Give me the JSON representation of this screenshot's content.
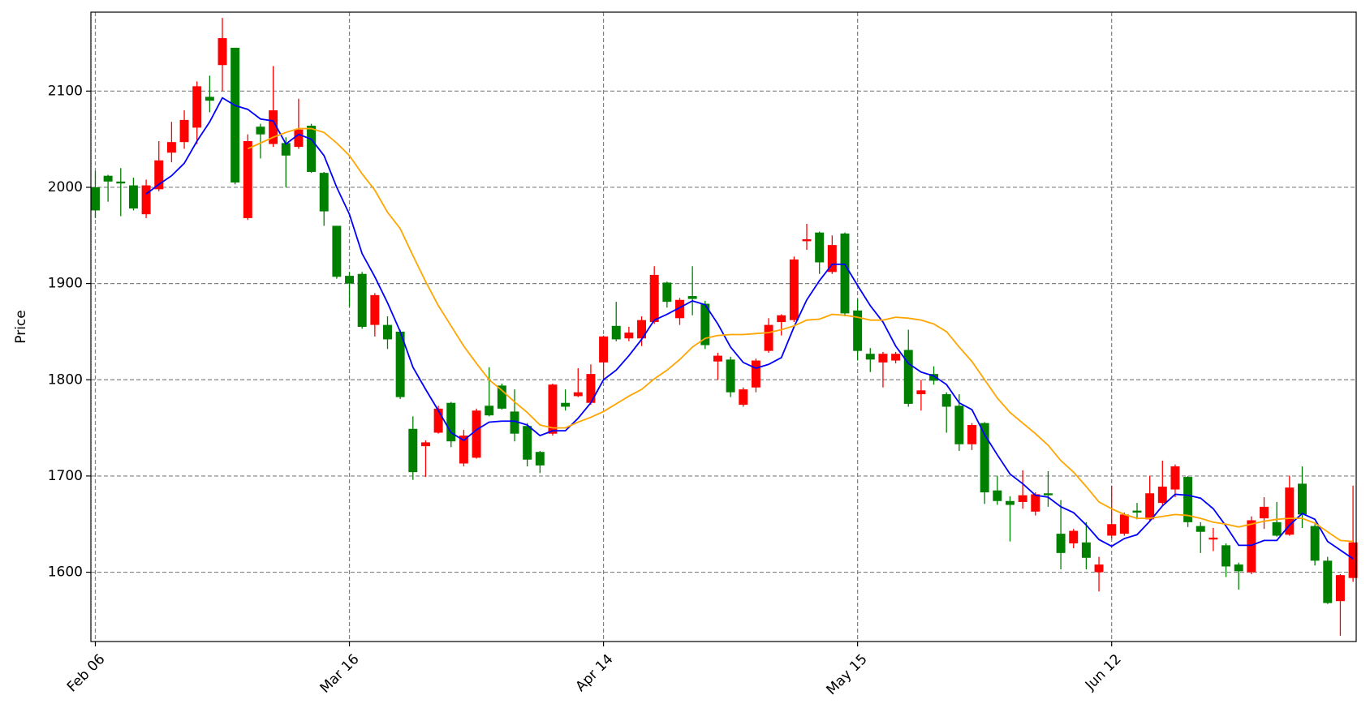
{
  "chart_data": {
    "type": "candlestick",
    "y_label": "Price",
    "ylim": [
      1528,
      2182
    ],
    "yticks": [
      1600,
      1700,
      1800,
      1900,
      2000,
      2100
    ],
    "xlim": [
      -0.35,
      99.25
    ],
    "xticks": [
      {
        "value": 0,
        "label": "Feb 06"
      },
      {
        "value": 20,
        "label": "Mar 16"
      },
      {
        "value": 40,
        "label": "Apr 14"
      },
      {
        "value": 60,
        "label": "May 15"
      },
      {
        "value": 80,
        "label": "Jun 12"
      }
    ],
    "grid": true,
    "up_color": "red",
    "down_color": "green",
    "open": [
      2000,
      2012,
      2006,
      2002,
      1972,
      1998,
      2036,
      2047,
      2062,
      2094,
      2127,
      2145,
      1968,
      2063,
      2045,
      2046,
      2042,
      2064,
      2015,
      1960,
      1908,
      1910,
      1857,
      1857,
      1850,
      1749,
      1731,
      1745,
      1776,
      1713,
      1719,
      1773,
      1794,
      1767,
      1752,
      1725,
      1744,
      1776,
      1783,
      1776,
      1818,
      1856,
      1843,
      1843,
      1860,
      1901,
      1864,
      1887,
      1879,
      1819,
      1821,
      1774,
      1792,
      1830,
      1860,
      1862,
      1944,
      1953,
      1912,
      1952,
      1872,
      1827,
      1818,
      1820,
      1831,
      1785,
      1806,
      1785,
      1773,
      1733,
      1755,
      1685,
      1674,
      1673,
      1663,
      1682,
      1640,
      1630,
      1631,
      1600,
      1638,
      1640,
      1664,
      1655,
      1672,
      1686,
      1699,
      1648,
      1634,
      1628,
      1608,
      1600,
      1656,
      1652,
      1639,
      1692,
      1648,
      1612,
      1570,
      1594
    ],
    "high": [
      2017,
      2013,
      2020,
      2010,
      2008,
      2048,
      2068,
      2080,
      2110,
      2116,
      2176,
      2145,
      2055,
      2066,
      2126,
      2052,
      2092,
      2066,
      2016,
      1960,
      1912,
      1912,
      1890,
      1866,
      1852,
      1762,
      1737,
      1773,
      1777,
      1748,
      1770,
      1813,
      1796,
      1790,
      1755,
      1726,
      1796,
      1790,
      1812,
      1816,
      1846,
      1881,
      1855,
      1866,
      1918,
      1902,
      1885,
      1918,
      1882,
      1828,
      1824,
      1792,
      1822,
      1864,
      1868,
      1928,
      1962,
      1954,
      1950,
      1953,
      1884,
      1833,
      1829,
      1829,
      1852,
      1800,
      1814,
      1787,
      1785,
      1755,
      1756,
      1700,
      1679,
      1706,
      1683,
      1705,
      1675,
      1645,
      1652,
      1616,
      1690,
      1662,
      1672,
      1700,
      1716,
      1712,
      1700,
      1652,
      1646,
      1630,
      1610,
      1658,
      1678,
      1673,
      1700,
      1710,
      1650,
      1616,
      1598,
      1690
    ],
    "low": [
      1968,
      1985,
      1970,
      1976,
      1968,
      1996,
      2026,
      2040,
      2045,
      2078,
      2100,
      2003,
      1966,
      2030,
      2042,
      2000,
      2040,
      2015,
      1960,
      1905,
      1876,
      1853,
      1845,
      1832,
      1780,
      1696,
      1699,
      1744,
      1730,
      1710,
      1718,
      1762,
      1769,
      1736,
      1710,
      1703,
      1742,
      1768,
      1782,
      1774,
      1800,
      1840,
      1840,
      1835,
      1858,
      1875,
      1857,
      1867,
      1832,
      1800,
      1782,
      1772,
      1787,
      1828,
      1846,
      1860,
      1935,
      1910,
      1910,
      1866,
      1820,
      1808,
      1792,
      1817,
      1772,
      1768,
      1795,
      1745,
      1726,
      1727,
      1671,
      1670,
      1632,
      1666,
      1659,
      1668,
      1603,
      1625,
      1603,
      1580,
      1635,
      1638,
      1655,
      1653,
      1670,
      1678,
      1647,
      1620,
      1622,
      1595,
      1582,
      1598,
      1645,
      1637,
      1638,
      1646,
      1607,
      1567,
      1534,
      1590
    ],
    "close": [
      1976,
      2006,
      2004,
      1978,
      2002,
      2028,
      2047,
      2070,
      2105,
      2090,
      2155,
      2005,
      2048,
      2055,
      2080,
      2033,
      2060,
      2016,
      1975,
      1907,
      1900,
      1855,
      1888,
      1842,
      1782,
      1704,
      1735,
      1770,
      1736,
      1742,
      1768,
      1763,
      1770,
      1744,
      1717,
      1711,
      1795,
      1772,
      1787,
      1806,
      1845,
      1842,
      1849,
      1862,
      1909,
      1881,
      1883,
      1884,
      1836,
      1825,
      1787,
      1790,
      1820,
      1857,
      1867,
      1925,
      1946,
      1922,
      1940,
      1869,
      1830,
      1821,
      1827,
      1827,
      1775,
      1789,
      1799,
      1772,
      1733,
      1753,
      1683,
      1674,
      1670,
      1680,
      1681,
      1680,
      1620,
      1643,
      1615,
      1608,
      1650,
      1660,
      1662,
      1682,
      1689,
      1710,
      1652,
      1642,
      1636,
      1606,
      1601,
      1654,
      1668,
      1638,
      1688,
      1660,
      1612,
      1568,
      1597,
      1631
    ],
    "lines": [
      {
        "color": "blue",
        "values": [
          null,
          null,
          null,
          null,
          1993,
          2003,
          2012,
          2025,
          2048,
          2068,
          2093,
          2085,
          2081,
          2071,
          2069,
          2045,
          2055,
          2050,
          2033,
          2000,
          1972,
          1931,
          1907,
          1880,
          1850,
          1813,
          1790,
          1768,
          1745,
          1737,
          1748,
          1756,
          1757,
          1757,
          1753,
          1742,
          1747,
          1747,
          1760,
          1776,
          1800,
          1810,
          1825,
          1842,
          1862,
          1868,
          1875,
          1882,
          1878,
          1858,
          1834,
          1818,
          1812,
          1816,
          1823,
          1855,
          1883,
          1903,
          1920,
          1920,
          1898,
          1877,
          1860,
          1835,
          1817,
          1808,
          1804,
          1795,
          1776,
          1769,
          1743,
          1722,
          1702,
          1692,
          1680,
          1678,
          1668,
          1662,
          1649,
          1634,
          1627,
          1635,
          1639,
          1653,
          1669,
          1681,
          1680,
          1677,
          1666,
          1648,
          1628,
          1628,
          1633,
          1633,
          1649,
          1661,
          1655,
          1632,
          1623,
          1614
        ]
      },
      {
        "color": "orange",
        "values": [
          null,
          null,
          null,
          null,
          null,
          null,
          null,
          null,
          null,
          null,
          null,
          null,
          2040,
          2046,
          2052,
          2057,
          2061,
          2061,
          2057,
          2046,
          2033,
          2014,
          1997,
          1974,
          1957,
          1929,
          1902,
          1877,
          1856,
          1835,
          1817,
          1800,
          1789,
          1777,
          1766,
          1753,
          1750,
          1750,
          1756,
          1761,
          1767,
          1775,
          1783,
          1790,
          1801,
          1810,
          1821,
          1834,
          1843,
          1846,
          1847,
          1847,
          1848,
          1849,
          1852,
          1856,
          1862,
          1863,
          1868,
          1867,
          1865,
          1862,
          1862,
          1865,
          1864,
          1862,
          1858,
          1850,
          1834,
          1819,
          1800,
          1781,
          1766,
          1755,
          1744,
          1732,
          1716,
          1704,
          1689,
          1673,
          1666,
          1660,
          1656,
          1656,
          1658,
          1660,
          1659,
          1656,
          1652,
          1650,
          1647,
          1650,
          1653,
          1655,
          1656,
          1656,
          1651,
          1642,
          1633,
          1632
        ]
      }
    ]
  }
}
